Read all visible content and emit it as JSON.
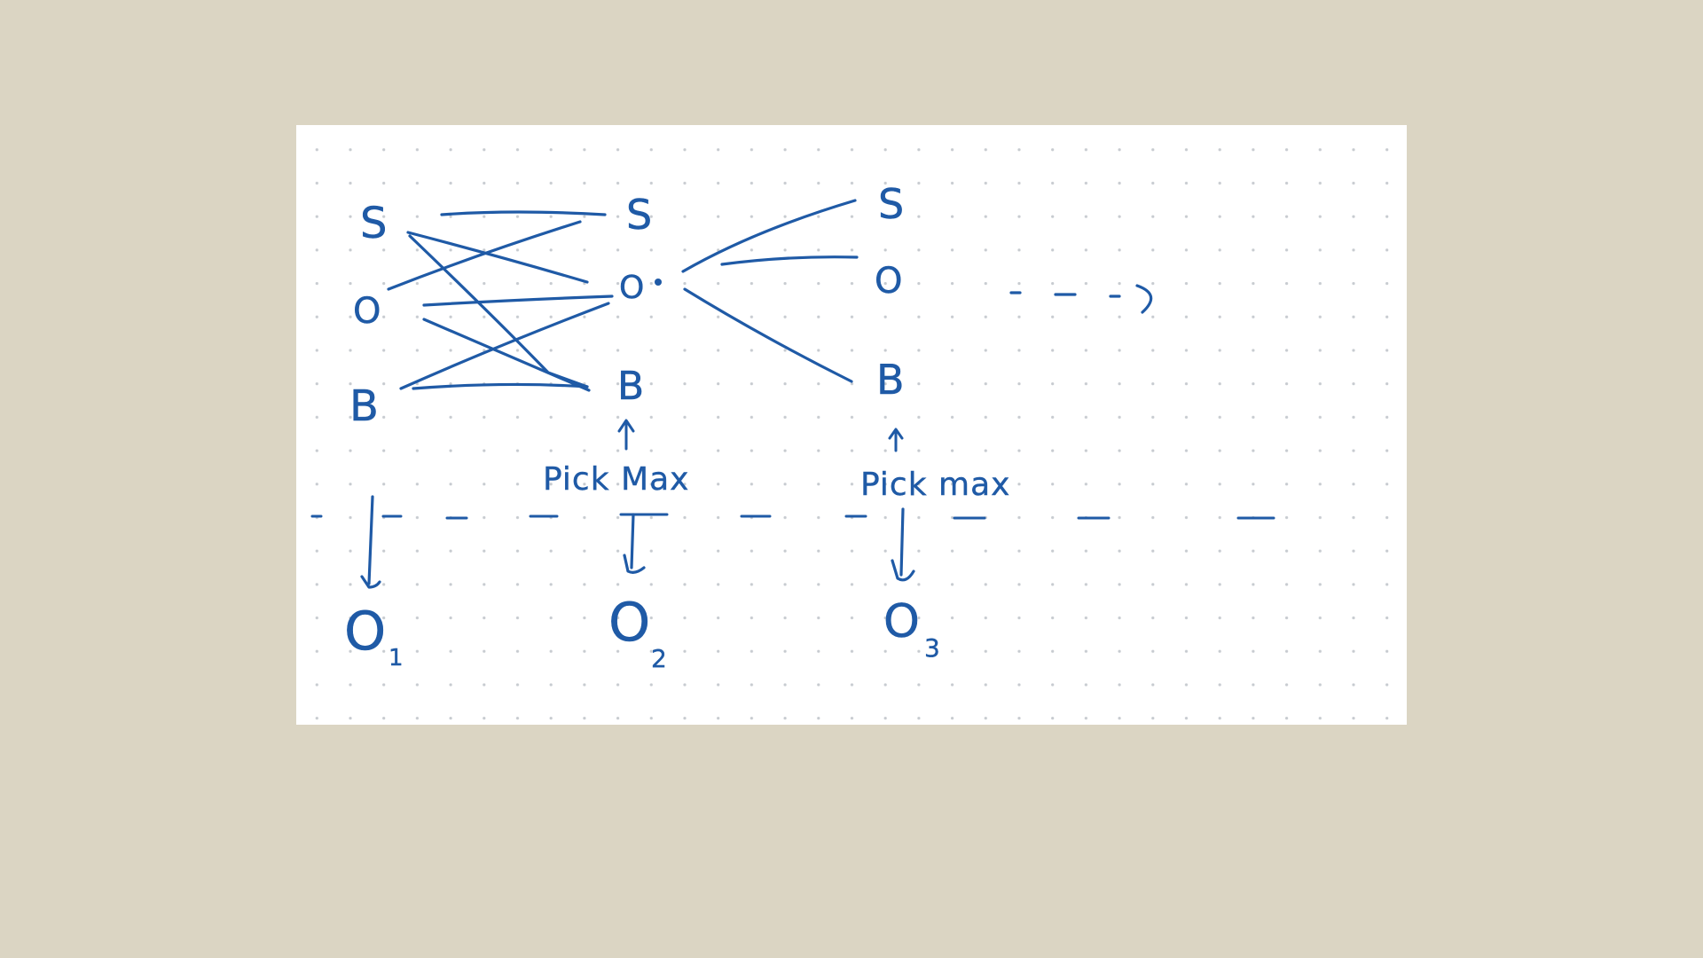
{
  "colors": {
    "background": "#dbd5c3",
    "paper": "#ffffff",
    "ink": "#1f5aa6",
    "grid_dot": "#c7cbd0"
  },
  "states": {
    "col1": [
      "S",
      "O",
      "B"
    ],
    "col2": [
      "S",
      "O",
      "B"
    ],
    "col3": [
      "S",
      "O",
      "B"
    ]
  },
  "annotations": {
    "pick_max_1": "Pick Max",
    "pick_max_2": "Pick max"
  },
  "observations": {
    "o1": {
      "main": "O",
      "sub": "1"
    },
    "o2": {
      "main": "O",
      "sub": "2"
    },
    "o3": {
      "main": "O",
      "sub": "3"
    }
  }
}
